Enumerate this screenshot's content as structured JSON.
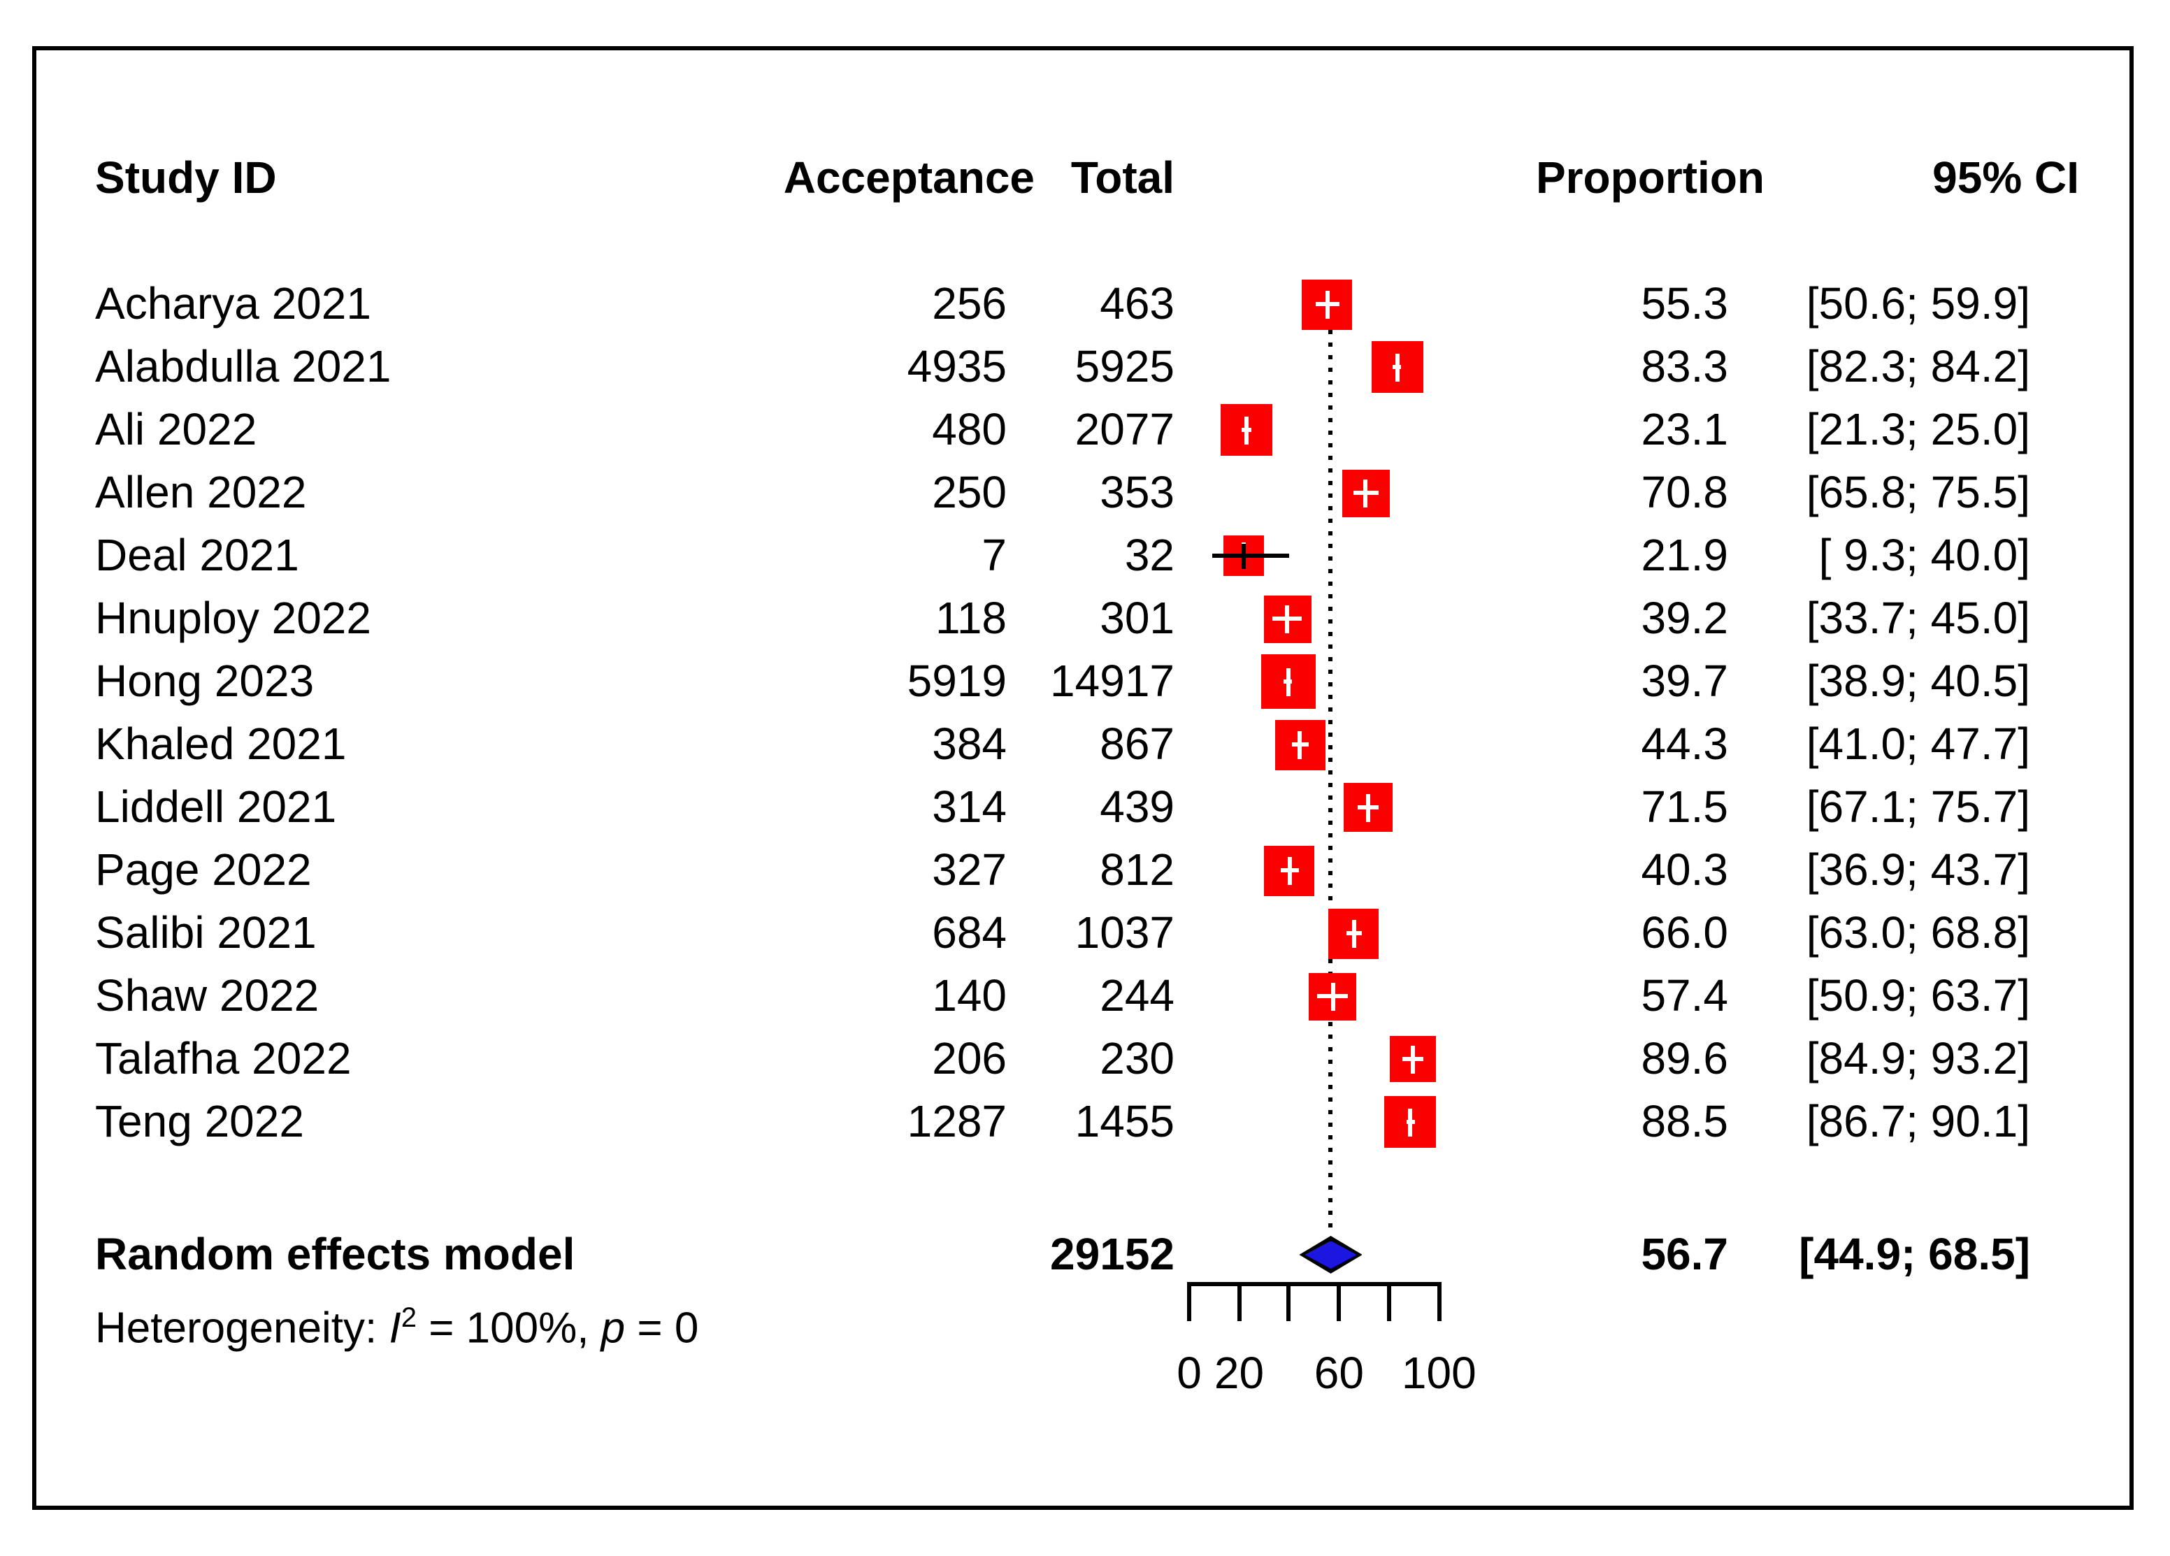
{
  "header": {
    "study_id": "Study ID",
    "acceptance": "Acceptance",
    "total": "Total",
    "proportion": "Proportion",
    "ci": "95% CI"
  },
  "heterogeneity": {
    "prefix": "Heterogeneity: ",
    "i_symbol": "I",
    "i_exponent": "2",
    "i_value": " = 100%, ",
    "p_symbol": "p",
    "p_value": " = 0"
  },
  "chart_data": {
    "type": "scatter",
    "subtype": "forest-plot",
    "title": "",
    "xlabel": "",
    "columns": [
      "Study ID",
      "Acceptance",
      "Total",
      "Proportion",
      "95% CI"
    ],
    "studies": [
      {
        "study": "Acharya 2021",
        "acceptance": "256",
        "total": "463",
        "proportion": "55.3",
        "ci": [
          50.6,
          59.9
        ],
        "ci_label": "[50.6; 59.9]",
        "size": 36
      },
      {
        "study": "Alabdulla 2021",
        "acceptance": "4935",
        "total": "5925",
        "proportion": "83.3",
        "ci": [
          82.3,
          84.2
        ],
        "ci_label": "[82.3; 84.2]",
        "size": 37
      },
      {
        "study": "Ali 2022",
        "acceptance": "480",
        "total": "2077",
        "proportion": "23.1",
        "ci": [
          21.3,
          25.0
        ],
        "ci_label": "[21.3; 25.0]",
        "size": 37
      },
      {
        "study": "Allen 2022",
        "acceptance": "250",
        "total": "353",
        "proportion": "70.8",
        "ci": [
          65.8,
          75.5
        ],
        "ci_label": "[65.8; 75.5]",
        "size": 34
      },
      {
        "study": "Deal 2021",
        "acceptance": "7",
        "total": "32",
        "proportion": "21.9",
        "ci": [
          9.3,
          40.0
        ],
        "ci_label": "[ 9.3; 40.0]",
        "size": 29
      },
      {
        "study": "Hnuploy 2022",
        "acceptance": "118",
        "total": "301",
        "proportion": "39.2",
        "ci": [
          33.7,
          45.0
        ],
        "ci_label": "[33.7; 45.0]",
        "size": 34
      },
      {
        "study": "Hong 2023",
        "acceptance": "5919",
        "total": "14917",
        "proportion": "39.7",
        "ci": [
          38.9,
          40.5
        ],
        "ci_label": "[38.9; 40.5]",
        "size": 39
      },
      {
        "study": "Khaled 2021",
        "acceptance": "384",
        "total": "867",
        "proportion": "44.3",
        "ci": [
          41.0,
          47.7
        ],
        "ci_label": "[41.0; 47.7]",
        "size": 36
      },
      {
        "study": "Liddell 2021",
        "acceptance": "314",
        "total": "439",
        "proportion": "71.5",
        "ci": [
          67.1,
          75.7
        ],
        "ci_label": "[67.1; 75.7]",
        "size": 35
      },
      {
        "study": "Page 2022",
        "acceptance": "327",
        "total": "812",
        "proportion": "40.3",
        "ci": [
          36.9,
          43.7
        ],
        "ci_label": "[36.9; 43.7]",
        "size": 36
      },
      {
        "study": "Salibi 2021",
        "acceptance": "684",
        "total": "1037",
        "proportion": "66.0",
        "ci": [
          63.0,
          68.8
        ],
        "ci_label": "[63.0; 68.8]",
        "size": 36
      },
      {
        "study": "Shaw 2022",
        "acceptance": "140",
        "total": "244",
        "proportion": "57.4",
        "ci": [
          50.9,
          63.7
        ],
        "ci_label": "[50.9; 63.7]",
        "size": 34
      },
      {
        "study": "Talafha 2022",
        "acceptance": "206",
        "total": "230",
        "proportion": "89.6",
        "ci": [
          84.9,
          93.2
        ],
        "ci_label": "[84.9; 93.2]",
        "size": 33
      },
      {
        "study": "Teng 2022",
        "acceptance": "1287",
        "total": "1455",
        "proportion": "88.5",
        "ci": [
          86.7,
          90.1
        ],
        "ci_label": "[86.7; 90.1]",
        "size": 37
      }
    ],
    "summary": {
      "label": "Random effects model",
      "total": "29152",
      "proportion": "56.7",
      "ci": [
        44.9,
        68.5
      ],
      "ci_label": "[44.9; 68.5]"
    },
    "heterogeneity_text": "Heterogeneity: I2 = 100%, p = 0",
    "axis": {
      "min": 0,
      "max": 100,
      "ticks": [
        0,
        20,
        40,
        60,
        80,
        100
      ],
      "labels": [
        {
          "value": 0,
          "text": "0"
        },
        {
          "value": 20,
          "text": "20"
        },
        {
          "value": 60,
          "text": "60"
        },
        {
          "value": 100,
          "text": "100"
        }
      ]
    },
    "layout_hints": {
      "grid": false,
      "legend": "none",
      "reference_line_at": 56.7
    },
    "colors": {
      "square": "#fa0000",
      "marker_cross": "#ffffff",
      "ci_line": "#000000",
      "diamond_fill": "#1b16e0",
      "diamond_border": "#000000",
      "reference_line": "#000000",
      "text": "#000000"
    }
  }
}
